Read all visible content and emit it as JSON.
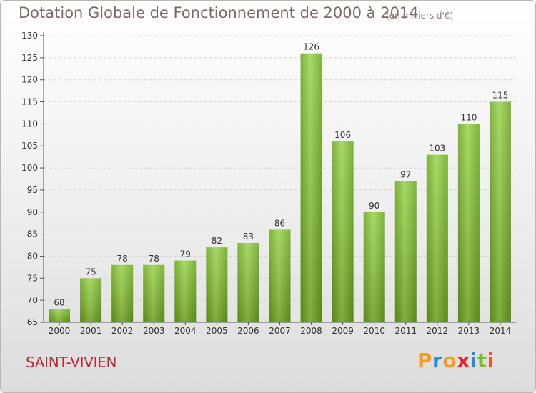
{
  "chart_data": {
    "type": "bar",
    "title": "Dotation Globale de Fonctionnement de 2000 à 2014",
    "subtitle": "(en milliers d'€)",
    "categories": [
      "2000",
      "2001",
      "2002",
      "2003",
      "2004",
      "2005",
      "2006",
      "2007",
      "2008",
      "2009",
      "2010",
      "2011",
      "2012",
      "2013",
      "2014"
    ],
    "values": [
      68,
      75,
      78,
      78,
      79,
      82,
      83,
      86,
      126,
      106,
      90,
      97,
      103,
      110,
      115
    ],
    "ylim": [
      65,
      130
    ],
    "yticks": [
      65,
      70,
      75,
      80,
      85,
      90,
      95,
      100,
      105,
      110,
      115,
      120,
      125,
      130
    ],
    "grid": true,
    "bar_color": "#7cbf2a"
  },
  "footer": {
    "commune": "SAINT-VIVIEN",
    "logo": [
      "P",
      "r",
      "o",
      "x",
      "i",
      "t",
      "i"
    ],
    "logo_colors": [
      "#f0a020",
      "#1e8fd8",
      "#f0a020",
      "#e02a2a",
      "#1e8fd8",
      "#7cbf2a",
      "#e05a2a"
    ]
  }
}
